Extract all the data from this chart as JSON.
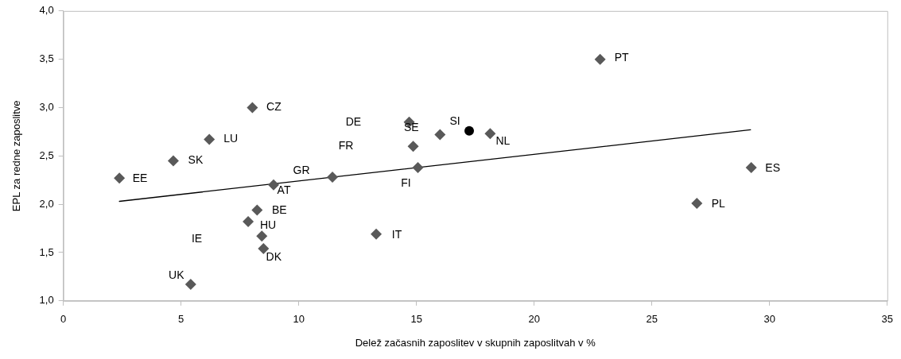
{
  "chart_data": {
    "type": "scatter",
    "xlabel": "Delež začasnih zaposlitev v skupnih zaposlitvah v %",
    "ylabel": "EPL za redne zaposlitve",
    "xlim": [
      0,
      35
    ],
    "xticks": [
      0,
      5,
      10,
      15,
      20,
      25,
      30,
      35
    ],
    "ylim": [
      1,
      4
    ],
    "yticks": [
      {
        "value": 1,
        "label": "1,0"
      },
      {
        "value": 1.5,
        "label": "1,5"
      },
      {
        "value": 2,
        "label": "2,0"
      },
      {
        "value": 2.5,
        "label": "2,5"
      },
      {
        "value": 3,
        "label": "3,0"
      },
      {
        "value": 3.5,
        "label": "3,5"
      },
      {
        "value": 4,
        "label": "4,0"
      }
    ],
    "grid": false,
    "legend": false,
    "series": [
      {
        "marker": "diamond",
        "color": "#595959",
        "x": [
          2.38,
          4.67,
          6.2,
          8.03,
          8.93,
          8.23,
          7.85,
          8.43,
          8.5,
          5.41,
          11.43,
          14.69,
          14.86,
          16.0,
          18.13,
          15.06,
          13.29,
          22.8,
          29.22,
          26.91
        ],
        "values": [
          2.27,
          2.45,
          2.67,
          3.0,
          2.2,
          1.94,
          1.82,
          1.67,
          1.54,
          1.17,
          2.28,
          2.85,
          2.6,
          2.72,
          2.73,
          2.38,
          1.69,
          3.5,
          2.38,
          2.01
        ],
        "value_labels": [
          "EE",
          "SK",
          "LU",
          "CZ",
          "AT",
          "BE",
          "HU",
          null,
          "DK",
          "UK",
          "GR",
          null,
          null,
          "SE",
          "NL",
          "FI",
          "IT",
          "PT",
          "ES",
          "PL"
        ]
      },
      {
        "marker": "circle",
        "color": "#000000",
        "x": [
          17.24
        ],
        "values": [
          2.76
        ],
        "value_labels": [
          "SI"
        ]
      },
      {
        "type": "line",
        "marker": "none",
        "line_style": "solid",
        "color": "#000000",
        "x": [
          2.38,
          29.19
        ],
        "values": [
          2.03,
          2.77
        ]
      }
    ],
    "annotations": [
      "DE",
      "FR",
      "IE"
    ]
  }
}
